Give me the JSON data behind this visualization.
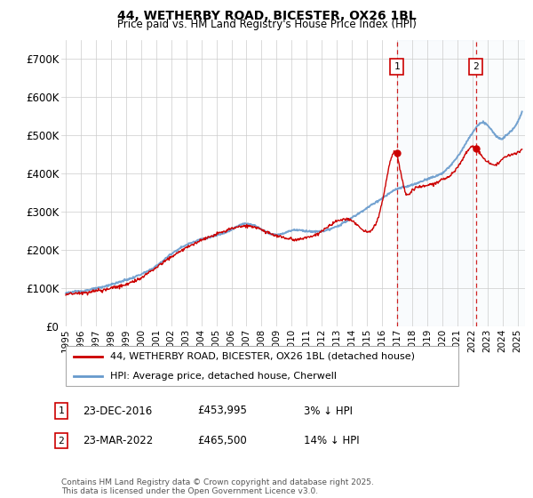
{
  "title": "44, WETHERBY ROAD, BICESTER, OX26 1BL",
  "subtitle": "Price paid vs. HM Land Registry's House Price Index (HPI)",
  "ylim": [
    0,
    750000
  ],
  "yticks": [
    0,
    100000,
    200000,
    300000,
    400000,
    500000,
    600000,
    700000
  ],
  "ytick_labels": [
    "£0",
    "£100K",
    "£200K",
    "£300K",
    "£400K",
    "£500K",
    "£600K",
    "£700K"
  ],
  "xlim_start": 1994.7,
  "xlim_end": 2025.5,
  "hpi_color": "#6699cc",
  "price_color": "#cc0000",
  "marker1_x": 2016.98,
  "marker1_price": 453995,
  "marker1_label": "1",
  "marker1_date": "23-DEC-2016",
  "marker1_price_str": "£453,995",
  "marker1_hpi": "3% ↓ HPI",
  "marker2_x": 2022.23,
  "marker2_price": 465500,
  "marker2_label": "2",
  "marker2_date": "23-MAR-2022",
  "marker2_price_str": "£465,500",
  "marker2_hpi": "14% ↓ HPI",
  "legend_line1": "44, WETHERBY ROAD, BICESTER, OX26 1BL (detached house)",
  "legend_line2": "HPI: Average price, detached house, Cherwell",
  "footer": "Contains HM Land Registry data © Crown copyright and database right 2025.\nThis data is licensed under the Open Government Licence v3.0.",
  "bg_color": "#ffffff",
  "grid_color": "#cccccc",
  "shade_color": "#e8f0f8"
}
